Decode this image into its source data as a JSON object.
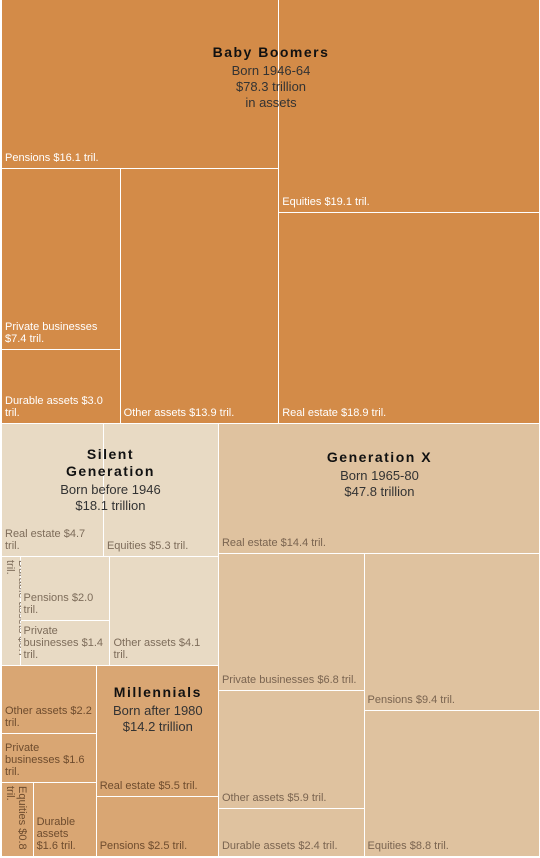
{
  "chart_data": {
    "type": "treemap",
    "groups": [
      {
        "name": "Baby Boomers",
        "born": "Born 1946-64",
        "total": 78.3,
        "total_label": "$78.3 trillion",
        "note": "in assets",
        "color": "#d38b48",
        "label_color": "#ffffff",
        "items": [
          {
            "name": "Pensions",
            "value": 16.1,
            "value_label": "$16.1 tril."
          },
          {
            "name": "Private businesses",
            "value": 7.4,
            "value_label": "$7.4 tril."
          },
          {
            "name": "Durable assets",
            "value": 3.0,
            "value_label": "$3.0 tril."
          },
          {
            "name": "Other assets",
            "value": 13.9,
            "value_label": "$13.9 tril."
          },
          {
            "name": "Equities",
            "value": 19.1,
            "value_label": "$19.1 tril."
          },
          {
            "name": "Real estate",
            "value": 18.9,
            "value_label": "$18.9 tril."
          }
        ]
      },
      {
        "name": "Silent Generation",
        "born": "Born before 1946",
        "total": 18.1,
        "total_label": "$18.1 trillion",
        "color": "#e8dac4",
        "label_color": "#7d6c5a",
        "items": [
          {
            "name": "Real estate",
            "value": 4.7,
            "value_label": "$4.7 tril."
          },
          {
            "name": "Equities",
            "value": 5.3,
            "value_label": "$5.3 tril."
          },
          {
            "name": "Durable assets",
            "value": 0.7,
            "value_label": "$0.7 tril."
          },
          {
            "name": "Pensions",
            "value": 2.0,
            "value_label": "$2.0 tril."
          },
          {
            "name": "Private businesses",
            "value": 1.4,
            "value_label": "$1.4 tril."
          },
          {
            "name": "Other assets",
            "value": 4.1,
            "value_label": "$4.1 tril."
          }
        ]
      },
      {
        "name": "Generation X",
        "born": "Born 1965-80",
        "total": 47.8,
        "total_label": "$47.8 trillion",
        "color": "#dfc29f",
        "label_color": "#7a6450",
        "items": [
          {
            "name": "Real estate",
            "value": 14.4,
            "value_label": "$14.4 tril."
          },
          {
            "name": "Private businesses",
            "value": 6.8,
            "value_label": "$6.8 tril."
          },
          {
            "name": "Other assets",
            "value": 5.9,
            "value_label": "$5.9 tril."
          },
          {
            "name": "Durable assets",
            "value": 2.4,
            "value_label": "$2.4 tril."
          },
          {
            "name": "Pensions",
            "value": 9.4,
            "value_label": "$9.4 tril."
          },
          {
            "name": "Equities",
            "value": 8.8,
            "value_label": "$8.8 tril."
          }
        ]
      },
      {
        "name": "Millennials",
        "born": "Born after 1980",
        "total": 14.2,
        "total_label": "$14.2 trillion",
        "color": "#d9a673",
        "label_color": "#6e4c2e",
        "items": [
          {
            "name": "Other assets",
            "value": 2.2,
            "value_label": "$2.2 tril."
          },
          {
            "name": "Private businesses",
            "value": 1.6,
            "value_label": "$1.6 tril."
          },
          {
            "name": "Equities",
            "value": 0.8,
            "value_label": "$0.8 tril."
          },
          {
            "name": "Durable assets",
            "value": 1.6,
            "value_label": "$1.6 tril."
          },
          {
            "name": "Real estate",
            "value": 5.5,
            "value_label": "$5.5 tril."
          },
          {
            "name": "Pensions",
            "value": 2.5,
            "value_label": "$2.5 tril."
          }
        ]
      }
    ]
  }
}
